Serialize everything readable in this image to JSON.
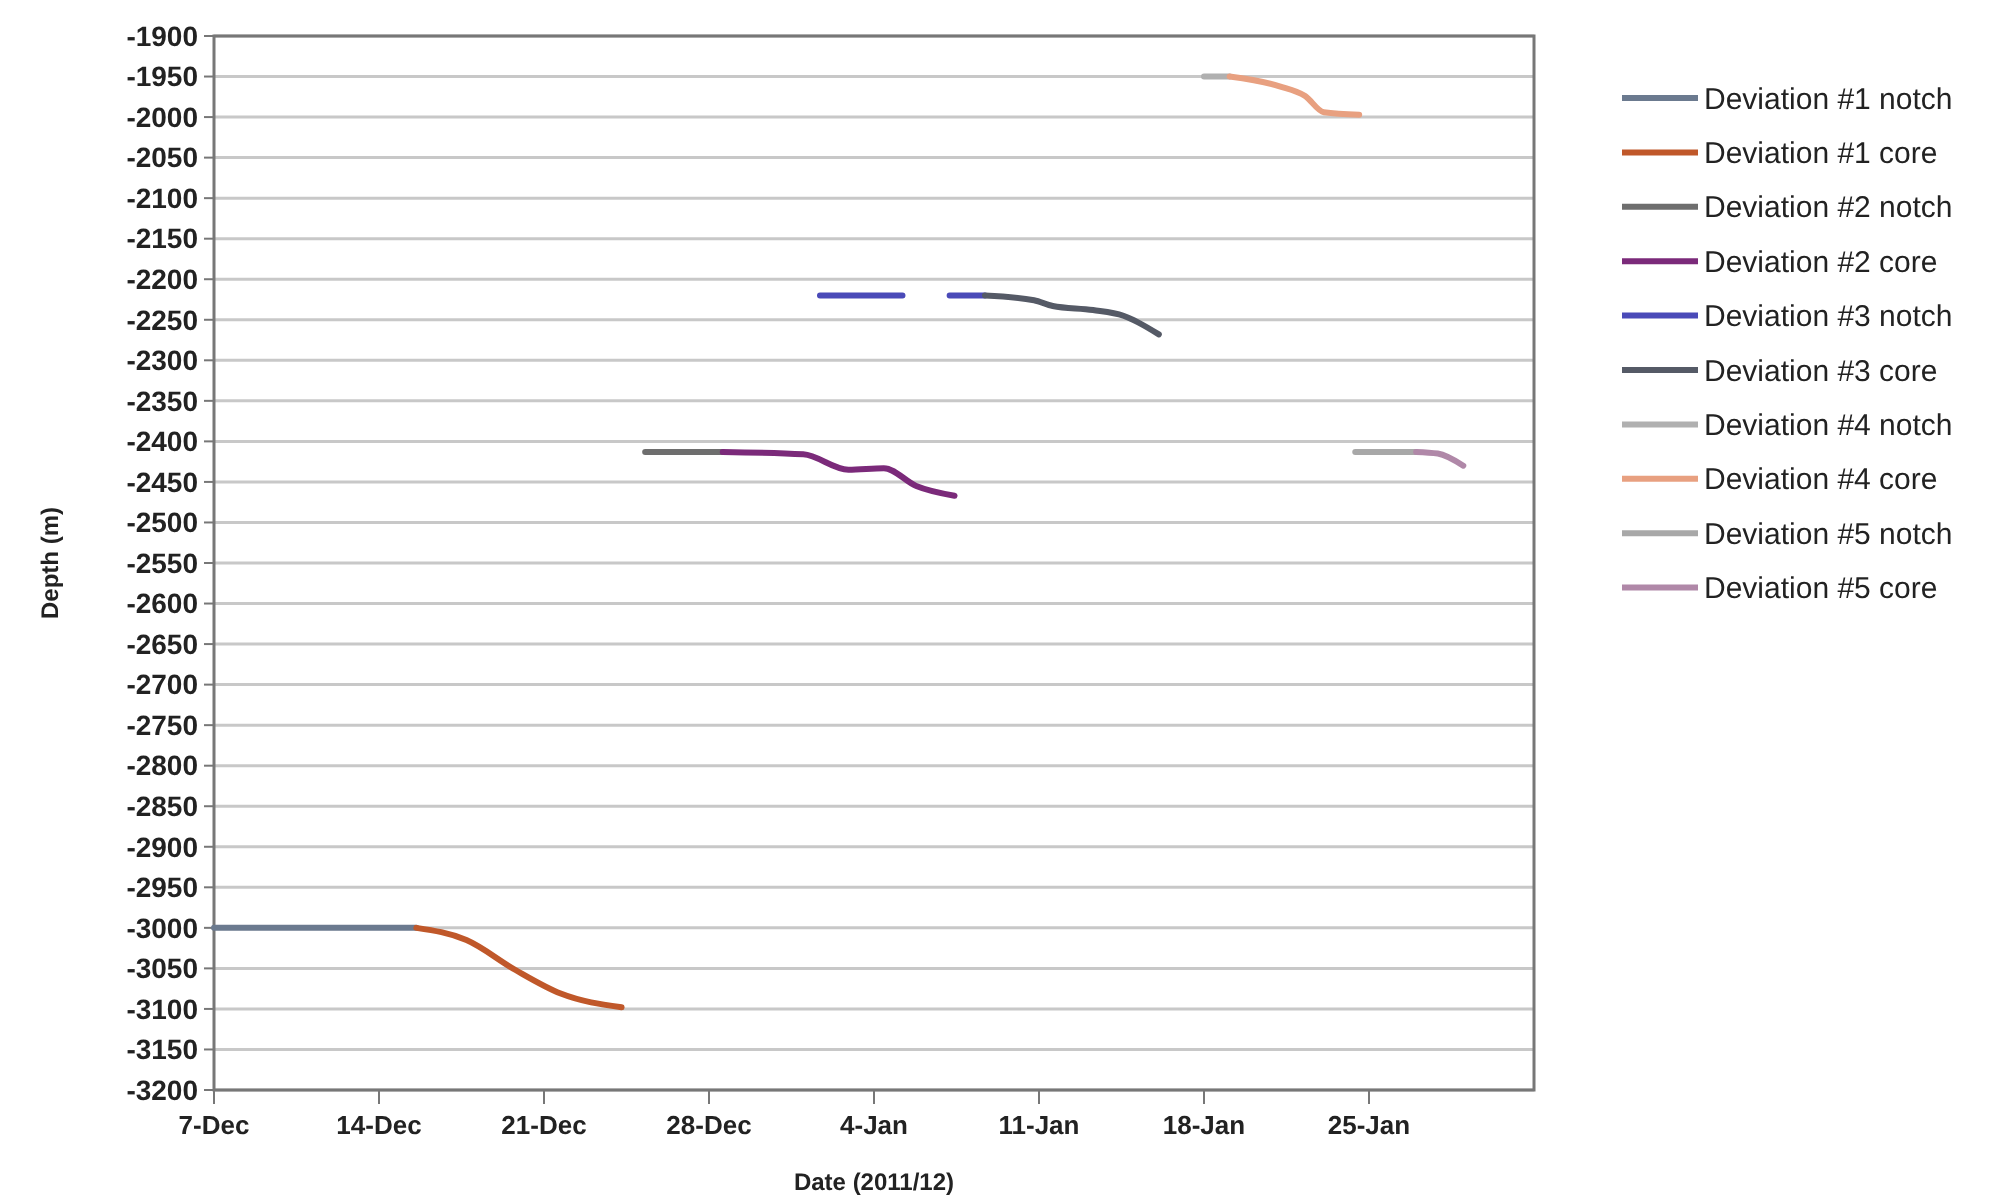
{
  "chart_data": {
    "type": "line",
    "xlabel": "Date (2011/12)",
    "ylabel": "Depth (m)",
    "xlim": [
      "2011-12-07",
      "2012-02-01"
    ],
    "xticks": [
      {
        "value": "2011-12-07",
        "label": "7-Dec"
      },
      {
        "value": "2011-12-14",
        "label": "14-Dec"
      },
      {
        "value": "2011-12-21",
        "label": "21-Dec"
      },
      {
        "value": "2011-12-28",
        "label": "28-Dec"
      },
      {
        "value": "2012-01-04",
        "label": "4-Jan"
      },
      {
        "value": "2012-01-11",
        "label": "11-Jan"
      },
      {
        "value": "2012-01-18",
        "label": "18-Jan"
      },
      {
        "value": "2012-01-25",
        "label": "25-Jan"
      }
    ],
    "ylim": [
      -3200,
      -1900
    ],
    "yticks": [
      -1900,
      -1950,
      -2000,
      -2050,
      -2100,
      -2150,
      -2200,
      -2250,
      -2300,
      -2350,
      -2400,
      -2450,
      -2500,
      -2550,
      -2600,
      -2650,
      -2700,
      -2750,
      -2800,
      -2850,
      -2900,
      -2950,
      -3000,
      -3050,
      -3100,
      -3150,
      -3200
    ],
    "grid": "y",
    "legend": "right",
    "marker": "none",
    "line_style": "solid",
    "series": [
      {
        "name": "Deviation #1 notch",
        "color": "#6b7a8f",
        "x": [
          "2011-12-07",
          "2011-12-15T14:00"
        ],
        "values": [
          -3000,
          -3000
        ]
      },
      {
        "name": "Deviation #1 core",
        "color": "#c0582a",
        "x": [
          "2011-12-15T14:00",
          "2011-12-17T17:00",
          "2011-12-19T19:00",
          "2011-12-21T17:00",
          "2011-12-24T07:00"
        ],
        "values": [
          -3000,
          -3015,
          -3052,
          -3081,
          -3098
        ]
      },
      {
        "name": "Deviation #2 notch",
        "color": "#6e6e6e",
        "x": [
          "2011-12-25T07:00",
          "2011-12-28T14:00"
        ],
        "values": [
          -2413,
          -2413
        ]
      },
      {
        "name": "Deviation #2 core",
        "color": "#7b2a7a",
        "x": [
          "2011-12-28T14:00",
          "2012-01-01",
          "2012-01-02T22:00",
          "2012-01-04T10:00",
          "2012-01-05T19:00",
          "2012-01-07T10:00"
        ],
        "values": [
          -2413,
          -2416,
          -2435,
          -2433,
          -2455,
          -2467
        ]
      },
      {
        "name": "Deviation #3 notch",
        "color": "#4a4ab8",
        "x": [
          "2012-01-01T17:00",
          "2012-01-05T05:00",
          "2012-01-06T05:00",
          "2012-01-07T05:00",
          "2012-01-08T17:00"
        ],
        "values": [
          -2220,
          -2220,
          null,
          -2220,
          -2220
        ]
      },
      {
        "name": "Deviation #3 core",
        "color": "#555a66",
        "x": [
          "2012-01-08T17:00",
          "2012-01-10T19:00",
          "2012-01-11T14:00",
          "2012-01-13T07:00",
          "2012-01-14T14:00",
          "2012-01-16T02:00"
        ],
        "values": [
          -2220,
          -2226,
          -2233,
          -2238,
          -2245,
          -2268
        ]
      },
      {
        "name": "Deviation #4 notch",
        "color": "#b0b0b0",
        "x": [
          "2012-01-18",
          "2012-01-19T02:00"
        ],
        "values": [
          -1950,
          -1950
        ]
      },
      {
        "name": "Deviation #4 core",
        "color": "#e8a080",
        "x": [
          "2012-01-19T02:00",
          "2012-01-21T05:00",
          "2012-01-22T07:00",
          "2012-01-23T02:00",
          "2012-01-24T14:00"
        ],
        "values": [
          -1950,
          -1962,
          -1974,
          -1994,
          -1997
        ]
      },
      {
        "name": "Deviation #5 notch",
        "color": "#a8a8a8",
        "x": [
          "2012-01-24T10:00",
          "2012-01-27"
        ],
        "values": [
          -2413,
          -2413
        ]
      },
      {
        "name": "Deviation #5 core",
        "color": "#b088a8",
        "x": [
          "2012-01-27",
          "2012-01-27T22:00",
          "2012-01-29"
        ],
        "values": [
          -2413,
          -2415,
          -2430
        ]
      }
    ]
  }
}
